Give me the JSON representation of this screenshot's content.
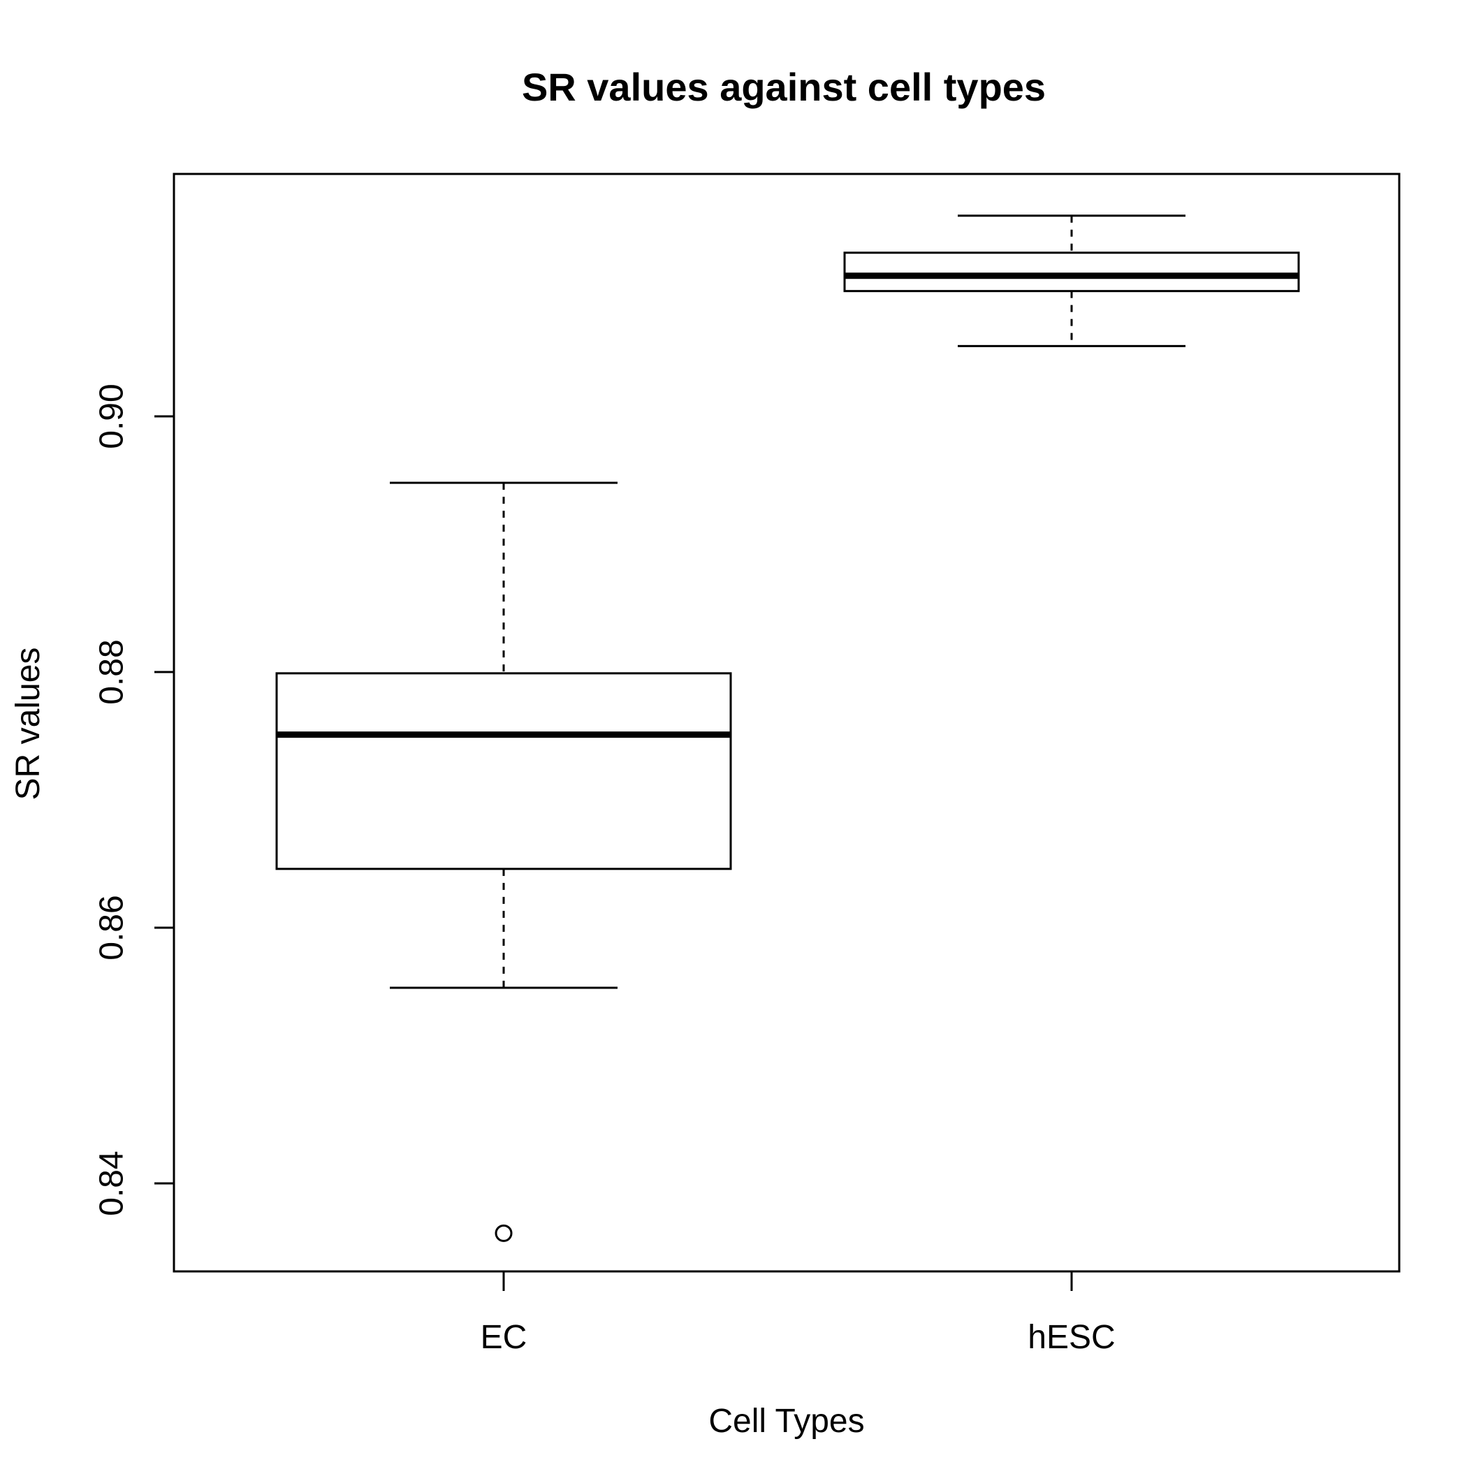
{
  "chart_data": {
    "type": "boxplot",
    "title": "SR values against cell types",
    "xlabel": "Cell Types",
    "ylabel": "SR values",
    "categories": [
      "EC",
      "hESC"
    ],
    "ylim": [
      0.827,
      0.9128
    ],
    "yticks": [
      0.84,
      0.86,
      0.88,
      0.9
    ],
    "ytick_labels": [
      "0.84",
      "0.86",
      "0.88",
      "0.90"
    ],
    "grid": false,
    "boxes": [
      {
        "category": "EC",
        "whisker_low": 0.8553,
        "q1": 0.8646,
        "median": 0.8751,
        "q3": 0.8799,
        "whisker_high": 0.8948,
        "outliers": [
          0.8361
        ]
      },
      {
        "category": "hESC",
        "whisker_low": 0.9055,
        "q1": 0.9098,
        "median": 0.911,
        "q3": 0.9128,
        "whisker_high": 0.9157,
        "outliers": []
      }
    ]
  }
}
